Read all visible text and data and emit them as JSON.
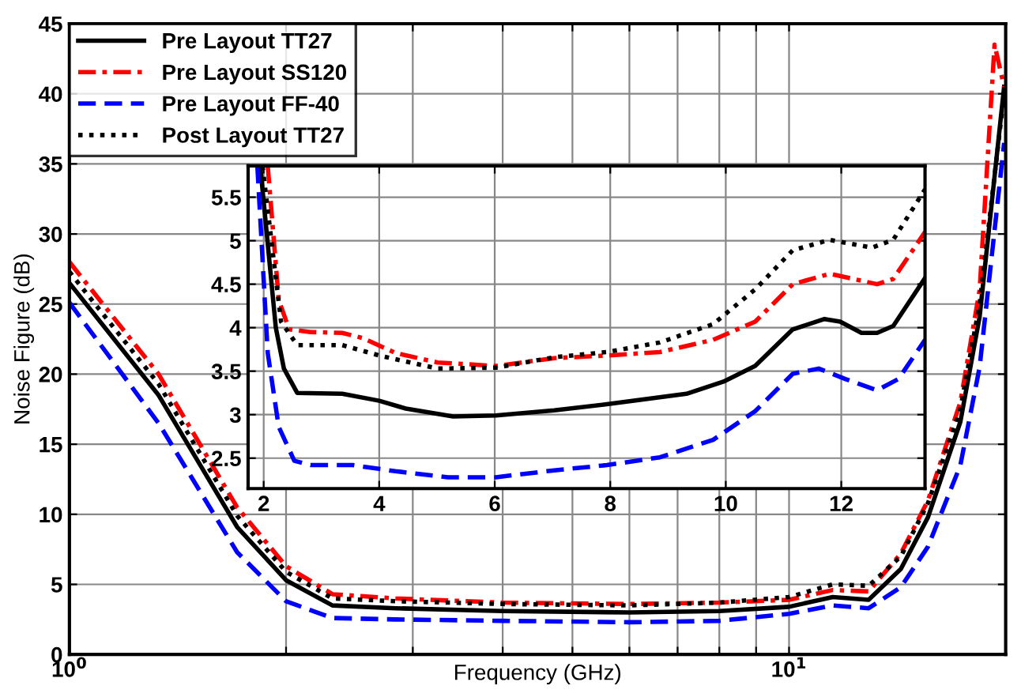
{
  "chart_data": [
    {
      "type": "line",
      "xlabel": "Frequency (GHz)",
      "ylabel": "Noise Figure (dB)",
      "log": "x",
      "xlim": [
        1,
        20
      ],
      "ylim": [
        0,
        45
      ],
      "xticks": [
        {
          "value": 1,
          "label": "10$^{0}$"
        },
        {
          "value": 2,
          "label": null
        },
        {
          "value": 3,
          "label": null
        },
        {
          "value": 4,
          "label": null
        },
        {
          "value": 5,
          "label": null
        },
        {
          "value": 6,
          "label": null
        },
        {
          "value": 7,
          "label": null
        },
        {
          "value": 8,
          "label": null
        },
        {
          "value": 9,
          "label": null
        },
        {
          "value": 10,
          "label": "10$^{1}$"
        }
      ],
      "yticks": [
        0,
        5,
        10,
        15,
        20,
        25,
        30,
        35,
        40,
        45
      ],
      "grid": true,
      "legend": "top left",
      "series": [
        {
          "name": "Pre Layout TT27",
          "color": "#000000",
          "line_style": "solid",
          "x": [
            1,
            1.33,
            1.71,
            2.0,
            2.32,
            2.84,
            4,
            6,
            8,
            10,
            11.5,
            12.9,
            14.3,
            15.6,
            17.3,
            18.4,
            19.9
          ],
          "values": [
            26.5,
            18.5,
            9.1,
            5.3,
            3.5,
            3.3,
            3.1,
            3.0,
            3.1,
            3.4,
            4.1,
            3.9,
            6.1,
            9.8,
            16.6,
            24.1,
            40.5
          ]
        },
        {
          "name": "Pre Layout SS120",
          "color": "#ff0000",
          "line_style": "dashdot",
          "x": [
            1,
            1.33,
            1.71,
            2.0,
            2.32,
            2.84,
            4,
            6,
            8,
            10,
            11.5,
            12.9,
            14.3,
            15.6,
            17.3,
            18.4,
            19.3,
            19.9
          ],
          "values": [
            28,
            20,
            10.5,
            6.3,
            4.3,
            4.0,
            3.7,
            3.6,
            3.7,
            3.9,
            4.6,
            4.5,
            7.2,
            11,
            18,
            26,
            43.5,
            40.5
          ]
        },
        {
          "name": "Pre Layout FF-40",
          "color": "#0000ff",
          "line_style": "dashed",
          "x": [
            1,
            1.33,
            1.71,
            2.0,
            2.32,
            2.84,
            4,
            6,
            8,
            10,
            11.5,
            12.9,
            14.3,
            15.6,
            17.3,
            18.4,
            19.9
          ],
          "values": [
            25.1,
            16.5,
            7.3,
            3.8,
            2.6,
            2.5,
            2.4,
            2.3,
            2.4,
            2.9,
            3.5,
            3.3,
            4.8,
            7.7,
            13.5,
            20.5,
            36.5
          ]
        },
        {
          "name": "Post Layout TT27",
          "color": "#000000",
          "line_style": "dotted",
          "x": [
            1,
            1.33,
            1.71,
            2.0,
            2.32,
            2.84,
            4,
            6,
            8,
            10,
            11.5,
            12.9,
            14.3,
            15.6,
            17.3,
            18.4,
            19.9
          ],
          "values": [
            27.3,
            19.3,
            9.9,
            5.9,
            4.0,
            3.8,
            3.6,
            3.5,
            3.7,
            4.1,
            5.0,
            4.9,
            7.0,
            10.8,
            17.5,
            25,
            40
          ]
        }
      ]
    },
    {
      "type": "line",
      "xlim": [
        1.73,
        13.45
      ],
      "ylim": [
        2.15,
        5.86
      ],
      "xticks": [
        2,
        4,
        6,
        8,
        10,
        12
      ],
      "yticks": [
        2.5,
        3,
        3.5,
        4,
        4.5,
        5,
        5.5
      ],
      "grid": true,
      "series": [
        {
          "color": "#000000",
          "line_style": "solid",
          "x": [
            1.94,
            2.21,
            2.35,
            2.58,
            3.36,
            4.0,
            4.46,
            5.28,
            6.02,
            7.03,
            7.94,
            9.32,
            9.96,
            10.51,
            11.16,
            11.71,
            11.98,
            12.35,
            12.62,
            12.9,
            13.45
          ],
          "values": [
            5.86,
            4.0,
            3.53,
            3.25,
            3.24,
            3.16,
            3.07,
            2.98,
            2.99,
            3.05,
            3.12,
            3.24,
            3.38,
            3.56,
            3.98,
            4.1,
            4.07,
            3.94,
            3.94,
            4.02,
            4.57
          ]
        },
        {
          "color": "#ff0000",
          "line_style": "dashdot",
          "x": [
            2.07,
            2.26,
            2.44,
            2.81,
            3.36,
            3.72,
            4.28,
            5.01,
            6.02,
            7.03,
            7.94,
            8.86,
            9.78,
            10.51,
            11.16,
            11.8,
            12.62,
            12.9,
            13.45
          ],
          "values": [
            5.86,
            4.32,
            3.98,
            3.95,
            3.94,
            3.88,
            3.71,
            3.6,
            3.56,
            3.65,
            3.68,
            3.72,
            3.86,
            4.07,
            4.5,
            4.62,
            4.5,
            4.56,
            5.1
          ]
        },
        {
          "color": "#0000ff",
          "line_style": "dashed",
          "x": [
            1.89,
            2.07,
            2.26,
            2.53,
            2.81,
            3.54,
            4.28,
            5.19,
            6.02,
            7.03,
            7.94,
            8.86,
            9.78,
            10.51,
            11.16,
            11.61,
            12.07,
            12.62,
            12.99,
            13.45
          ],
          "values": [
            5.86,
            3.71,
            2.86,
            2.47,
            2.42,
            2.42,
            2.35,
            2.28,
            2.28,
            2.36,
            2.42,
            2.51,
            2.71,
            3.04,
            3.47,
            3.53,
            3.41,
            3.28,
            3.41,
            3.86
          ]
        },
        {
          "color": "#000000",
          "line_style": "dotted",
          "x": [
            1.98,
            2.3,
            2.58,
            3.36,
            4.0,
            5.01,
            6.02,
            7.03,
            7.94,
            8.86,
            9.78,
            10.51,
            11.16,
            11.8,
            12.53,
            12.9,
            13.45
          ],
          "values": [
            5.86,
            4.07,
            3.8,
            3.8,
            3.68,
            3.53,
            3.54,
            3.66,
            3.72,
            3.83,
            4.04,
            4.44,
            4.89,
            5.01,
            4.92,
            5.01,
            5.59
          ]
        }
      ]
    }
  ]
}
